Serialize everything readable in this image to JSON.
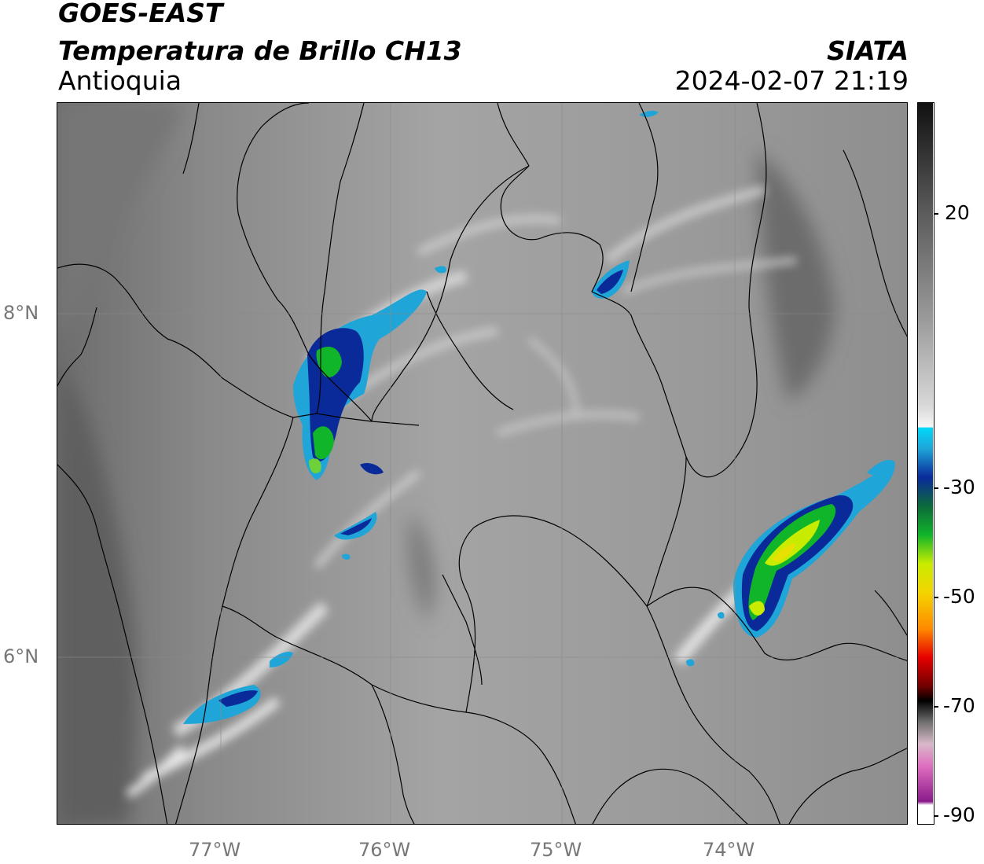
{
  "header": {
    "satellite": "GOES-EAST",
    "product": "Temperatura de Brillo CH13",
    "region": "Antioquia",
    "agency": "SIATA",
    "timestamp": "2024-02-07 21:19"
  },
  "map": {
    "lat_ticks": [
      "8°N",
      "6°N"
    ],
    "lon_ticks": [
      "77°W",
      "76°W",
      "75°W",
      "74°W"
    ],
    "gridlines": true,
    "background": "grayscale infrared brightness temperature",
    "cold_cloud_areas": [
      "northwest Antioquia (Urabá)",
      "northeast (Sur de Bolívar)",
      "east (Magdalena Medio)",
      "southwest Pacific coast"
    ]
  },
  "colorbar": {
    "ticks": [
      "20",
      "-30",
      "-50",
      "-70",
      "-90"
    ],
    "unit": "",
    "colors": {
      "warm": "#181818",
      "mid_gray": "#9a9a9a",
      "white": "#f4f4f4",
      "cyan": "#00c8f0",
      "blue": "#0a2a9a",
      "green": "#11b52a",
      "yellow": "#e6f000",
      "orange": "#ff9a00",
      "red": "#e60000",
      "black": "#000000",
      "pink": "#e070c0",
      "purple": "#8a1a8a"
    }
  }
}
